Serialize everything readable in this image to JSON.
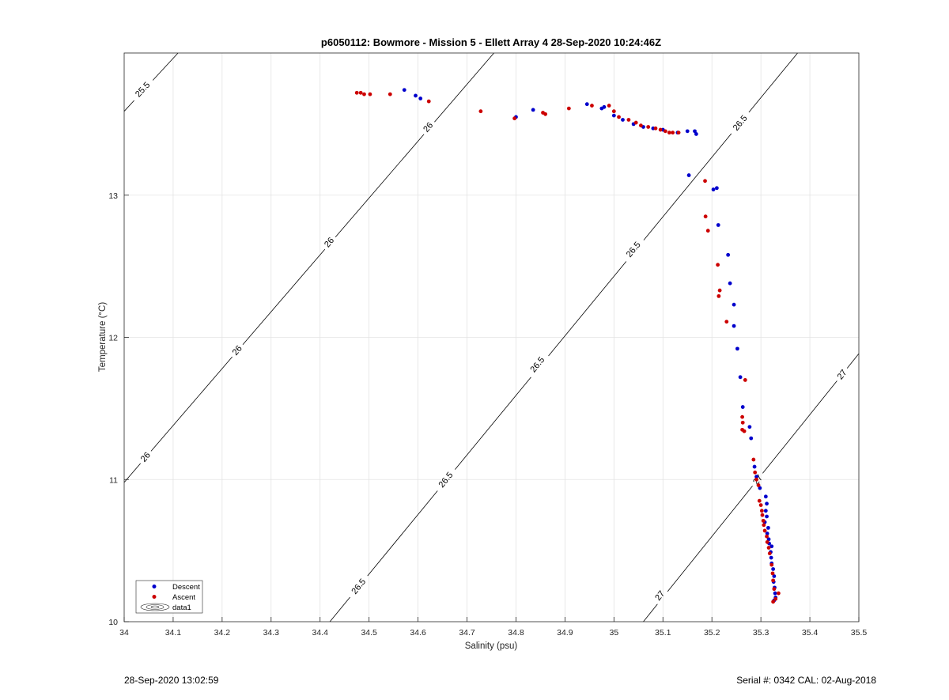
{
  "chart_data": {
    "type": "scatter",
    "title": "p6050112: Bowmore - Mission 5 - Ellett Array 4 28-Sep-2020 10:24:46Z",
    "xlabel": "Salinity (psu)",
    "ylabel": "Temperature (°C)",
    "xlim": [
      34,
      35.5
    ],
    "ylim": [
      10,
      14
    ],
    "xticks": [
      34,
      34.1,
      34.2,
      34.3,
      34.4,
      34.5,
      34.6,
      34.7,
      34.8,
      34.9,
      35,
      35.1,
      35.2,
      35.3,
      35.4,
      35.5
    ],
    "xtick_labels": [
      "34",
      "34.1",
      "34.2",
      "34.3",
      "34.4",
      "34.5",
      "34.6",
      "34.7",
      "34.8",
      "34.9",
      "35",
      "35.1",
      "35.2",
      "35.3",
      "35.4",
      "35.5"
    ],
    "yticks": [
      10,
      11,
      12,
      13
    ],
    "ytick_labels": [
      "10",
      "11",
      "12",
      "13"
    ],
    "grid": true,
    "legend_position": "bottom-left",
    "legend": [
      "Descent",
      "Ascent",
      "data1"
    ],
    "series": [
      {
        "name": "Descent",
        "color": "#0000cc",
        "points": [
          [
            34.572,
            13.74
          ],
          [
            34.595,
            13.7
          ],
          [
            34.605,
            13.68
          ],
          [
            34.8,
            13.55
          ],
          [
            34.835,
            13.6
          ],
          [
            34.945,
            13.64
          ],
          [
            34.975,
            13.61
          ],
          [
            34.98,
            13.62
          ],
          [
            35.0,
            13.56
          ],
          [
            35.018,
            13.53
          ],
          [
            35.04,
            13.5
          ],
          [
            35.06,
            13.48
          ],
          [
            35.08,
            13.47
          ],
          [
            35.1,
            13.46
          ],
          [
            35.13,
            13.44
          ],
          [
            35.15,
            13.45
          ],
          [
            35.165,
            13.45
          ],
          [
            35.168,
            13.43
          ],
          [
            35.153,
            13.14
          ],
          [
            35.21,
            13.05
          ],
          [
            35.203,
            13.04
          ],
          [
            35.213,
            12.79
          ],
          [
            35.233,
            12.58
          ],
          [
            35.237,
            12.38
          ],
          [
            35.245,
            12.23
          ],
          [
            35.245,
            12.08
          ],
          [
            35.252,
            11.92
          ],
          [
            35.258,
            11.72
          ],
          [
            35.263,
            11.51
          ],
          [
            35.277,
            11.37
          ],
          [
            35.28,
            11.29
          ],
          [
            35.287,
            11.09
          ],
          [
            35.291,
            11.02
          ],
          [
            35.298,
            10.94
          ],
          [
            35.31,
            10.88
          ],
          [
            35.312,
            10.83
          ],
          [
            35.31,
            10.78
          ],
          [
            35.312,
            10.74
          ],
          [
            35.308,
            10.7
          ],
          [
            35.315,
            10.66
          ],
          [
            35.313,
            10.62
          ],
          [
            35.316,
            10.58
          ],
          [
            35.317,
            10.55
          ],
          [
            35.322,
            10.53
          ],
          [
            35.32,
            10.49
          ],
          [
            35.321,
            10.45
          ],
          [
            35.322,
            10.41
          ],
          [
            35.325,
            10.37
          ],
          [
            35.327,
            10.32
          ],
          [
            35.326,
            10.28
          ],
          [
            35.328,
            10.24
          ],
          [
            35.329,
            10.2
          ],
          [
            35.33,
            10.17
          ],
          [
            35.327,
            10.15
          ]
        ]
      },
      {
        "name": "Ascent",
        "color": "#cc0000",
        "points": [
          [
            34.475,
            13.72
          ],
          [
            34.483,
            13.72
          ],
          [
            34.49,
            13.71
          ],
          [
            34.502,
            13.71
          ],
          [
            34.543,
            13.71
          ],
          [
            34.622,
            13.66
          ],
          [
            34.728,
            13.59
          ],
          [
            34.797,
            13.54
          ],
          [
            34.855,
            13.58
          ],
          [
            34.86,
            13.57
          ],
          [
            34.908,
            13.61
          ],
          [
            34.955,
            13.63
          ],
          [
            34.99,
            13.63
          ],
          [
            35.0,
            13.59
          ],
          [
            35.01,
            13.55
          ],
          [
            35.03,
            13.53
          ],
          [
            35.045,
            13.51
          ],
          [
            35.055,
            13.49
          ],
          [
            35.07,
            13.48
          ],
          [
            35.085,
            13.47
          ],
          [
            35.095,
            13.46
          ],
          [
            35.105,
            13.45
          ],
          [
            35.113,
            13.44
          ],
          [
            35.12,
            13.44
          ],
          [
            35.132,
            13.44
          ],
          [
            35.186,
            13.1
          ],
          [
            35.187,
            12.85
          ],
          [
            35.192,
            12.75
          ],
          [
            35.212,
            12.51
          ],
          [
            35.216,
            12.33
          ],
          [
            35.214,
            12.29
          ],
          [
            35.23,
            12.11
          ],
          [
            35.268,
            11.7
          ],
          [
            35.262,
            11.44
          ],
          [
            35.263,
            11.4
          ],
          [
            35.262,
            11.35
          ],
          [
            35.266,
            11.34
          ],
          [
            35.285,
            11.14
          ],
          [
            35.288,
            11.05
          ],
          [
            35.291,
            11.0
          ],
          [
            35.295,
            10.96
          ],
          [
            35.297,
            10.85
          ],
          [
            35.3,
            10.82
          ],
          [
            35.302,
            10.78
          ],
          [
            35.303,
            10.75
          ],
          [
            35.305,
            10.71
          ],
          [
            35.306,
            10.68
          ],
          [
            35.308,
            10.64
          ],
          [
            35.312,
            10.6
          ],
          [
            35.313,
            10.56
          ],
          [
            35.316,
            10.52
          ],
          [
            35.318,
            10.48
          ],
          [
            35.322,
            10.4
          ],
          [
            35.324,
            10.34
          ],
          [
            35.325,
            10.29
          ],
          [
            35.327,
            10.23
          ],
          [
            35.336,
            10.2
          ],
          [
            35.33,
            10.16
          ],
          [
            35.325,
            10.14
          ]
        ]
      }
    ],
    "isopycnals": [
      {
        "level": "25.5",
        "x": [
          34.0,
          34.11
        ],
        "y": [
          13.59,
          14.0
        ],
        "labels": [
          {
            "text": "25.5",
            "x": 34.037,
            "y": 13.745
          }
        ]
      },
      {
        "level": "26",
        "x": [
          34.0,
          34.755
        ],
        "y": [
          10.98,
          14.0
        ],
        "labels": [
          {
            "text": "26",
            "x": 34.043,
            "y": 11.16
          },
          {
            "text": "26",
            "x": 34.23,
            "y": 11.91
          },
          {
            "text": "26",
            "x": 34.418,
            "y": 12.67
          },
          {
            "text": "26",
            "x": 34.62,
            "y": 13.48
          }
        ]
      },
      {
        "level": "26.5",
        "x": [
          34.42,
          35.375
        ],
        "y": [
          10.0,
          14.0
        ],
        "labels": [
          {
            "text": "26.5",
            "x": 34.478,
            "y": 10.25
          },
          {
            "text": "26.5",
            "x": 34.656,
            "y": 11.0
          },
          {
            "text": "26.5",
            "x": 34.843,
            "y": 11.81
          },
          {
            "text": "26.5",
            "x": 35.039,
            "y": 12.62
          },
          {
            "text": "26.5",
            "x": 35.257,
            "y": 13.51
          }
        ]
      },
      {
        "level": "27",
        "x": [
          35.06,
          35.5
        ],
        "y": [
          10.0,
          11.885
        ],
        "labels": [
          {
            "text": "27",
            "x": 35.093,
            "y": 10.185
          },
          {
            "text": "27",
            "x": 35.293,
            "y": 11.0
          },
          {
            "text": "27",
            "x": 35.465,
            "y": 11.74
          }
        ]
      }
    ]
  },
  "footer": {
    "left": "28-Sep-2020 13:02:59",
    "right": "Serial #: 0342  CAL: 02-Aug-2018"
  }
}
